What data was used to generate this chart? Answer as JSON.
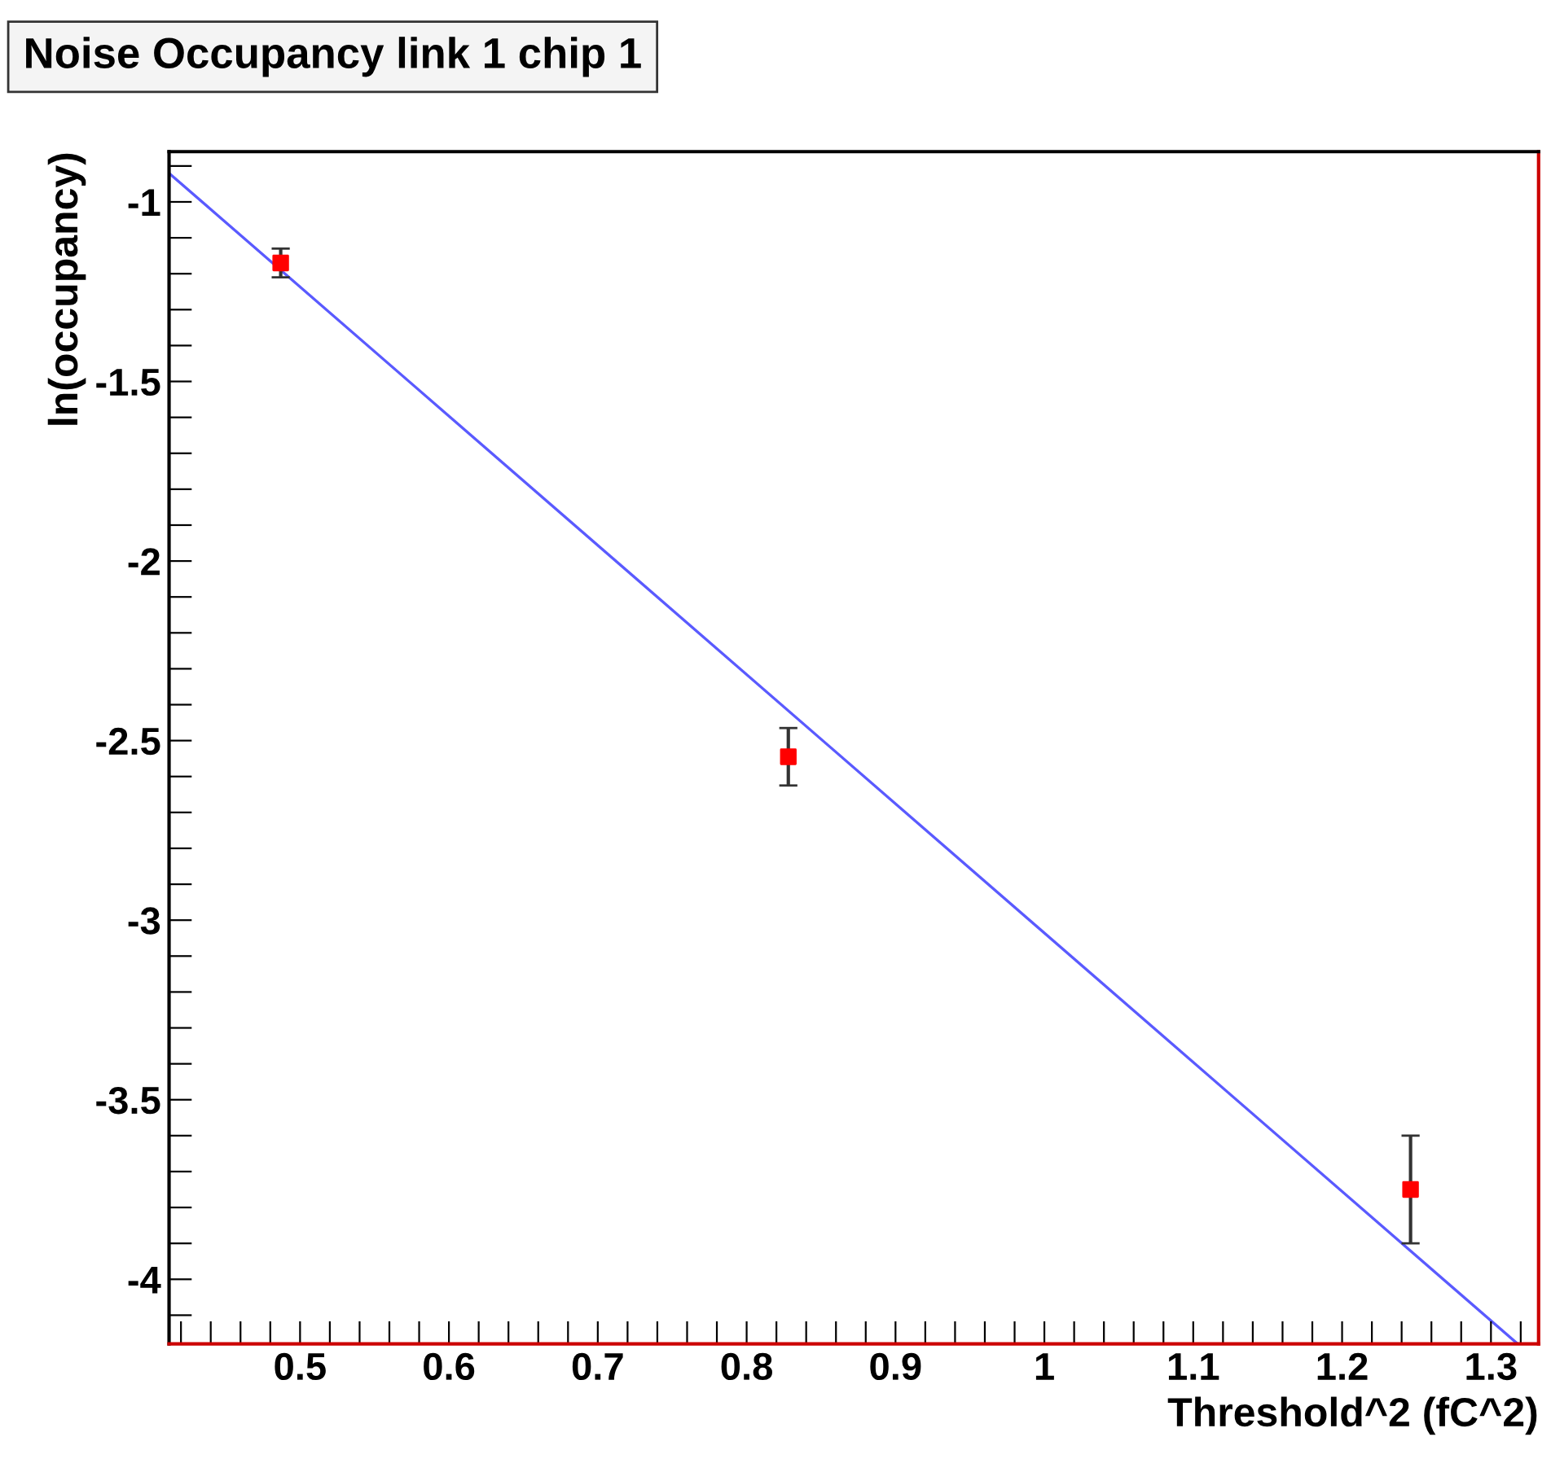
{
  "chart_data": {
    "type": "scatter",
    "title": "Noise Occupancy link 1 chip 1",
    "xlabel": "Threshold^2 (fC^2)",
    "ylabel": "ln(occupancy)",
    "xlim": [
      0.412,
      1.332
    ],
    "ylim": [
      -4.18,
      -0.86
    ],
    "xticks": [
      {
        "value": 0.42,
        "label": null
      },
      {
        "value": 0.44,
        "label": null
      },
      {
        "value": 0.46,
        "label": null
      },
      {
        "value": 0.48,
        "label": null
      },
      0.5,
      {
        "value": 0.52,
        "label": null
      },
      {
        "value": 0.54,
        "label": null
      },
      {
        "value": 0.56,
        "label": null
      },
      {
        "value": 0.58,
        "label": null
      },
      0.6,
      {
        "value": 0.62,
        "label": null
      },
      {
        "value": 0.64,
        "label": null
      },
      {
        "value": 0.66,
        "label": null
      },
      {
        "value": 0.68,
        "label": null
      },
      0.7,
      {
        "value": 0.72,
        "label": null
      },
      {
        "value": 0.74,
        "label": null
      },
      {
        "value": 0.76,
        "label": null
      },
      {
        "value": 0.78,
        "label": null
      },
      0.8,
      {
        "value": 0.82,
        "label": null
      },
      {
        "value": 0.84,
        "label": null
      },
      {
        "value": 0.86,
        "label": null
      },
      {
        "value": 0.88,
        "label": null
      },
      0.9,
      {
        "value": 0.92,
        "label": null
      },
      {
        "value": 0.94,
        "label": null
      },
      {
        "value": 0.96,
        "label": null
      },
      {
        "value": 0.98,
        "label": null
      },
      1,
      {
        "value": 1.02,
        "label": null
      },
      {
        "value": 1.04,
        "label": null
      },
      {
        "value": 1.06,
        "label": null
      },
      {
        "value": 1.08,
        "label": null
      },
      1.1,
      {
        "value": 1.12,
        "label": null
      },
      {
        "value": 1.14,
        "label": null
      },
      {
        "value": 1.16,
        "label": null
      },
      {
        "value": 1.18,
        "label": null
      },
      1.2,
      {
        "value": 1.22,
        "label": null
      },
      {
        "value": 1.24,
        "label": null
      },
      {
        "value": 1.26,
        "label": null
      },
      {
        "value": 1.28,
        "label": null
      },
      1.3,
      {
        "value": 1.32,
        "label": null
      }
    ],
    "yticks": [
      {
        "value": -4.1,
        "label": null
      },
      -4,
      {
        "value": -3.9,
        "label": null
      },
      {
        "value": -3.8,
        "label": null
      },
      {
        "value": -3.7,
        "label": null
      },
      {
        "value": -3.6,
        "label": null
      },
      -3.5,
      {
        "value": -3.4,
        "label": null
      },
      {
        "value": -3.3,
        "label": null
      },
      {
        "value": -3.2,
        "label": null
      },
      {
        "value": -3.1,
        "label": null
      },
      -3,
      {
        "value": -2.9,
        "label": null
      },
      {
        "value": -2.8,
        "label": null
      },
      {
        "value": -2.7,
        "label": null
      },
      {
        "value": -2.6,
        "label": null
      },
      -2.5,
      {
        "value": -2.4,
        "label": null
      },
      {
        "value": -2.3,
        "label": null
      },
      {
        "value": -2.2,
        "label": null
      },
      {
        "value": -2.1,
        "label": null
      },
      -2,
      {
        "value": -1.9,
        "label": null
      },
      {
        "value": -1.8,
        "label": null
      },
      {
        "value": -1.7,
        "label": null
      },
      {
        "value": -1.6,
        "label": null
      },
      -1.5,
      {
        "value": -1.4,
        "label": null
      },
      {
        "value": -1.3,
        "label": null
      },
      {
        "value": -1.2,
        "label": null
      },
      {
        "value": -1.1,
        "label": null
      },
      -1,
      {
        "value": -0.9,
        "label": null
      }
    ],
    "grid": false,
    "legend": false,
    "marker": "square",
    "series": [
      {
        "color": "#ff0000",
        "x": [
          0.487,
          0.828,
          1.246
        ],
        "values": [
          -1.17,
          -2.545,
          -3.75
        ],
        "errors": [
          0.04,
          0.08,
          0.15
        ]
      },
      {
        "type": "line",
        "marker": "none",
        "color": "#5a5aff",
        "x": [
          0.412,
          1.318
        ],
        "values": [
          -0.92,
          -4.18
        ]
      }
    ]
  }
}
